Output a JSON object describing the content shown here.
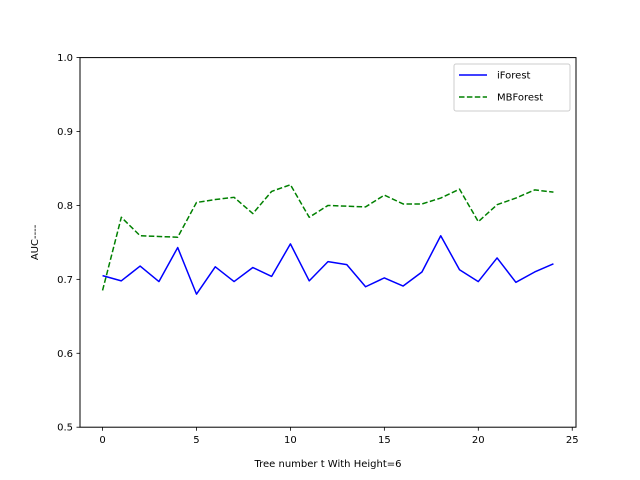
{
  "chart_data": {
    "type": "line",
    "xlabel": "Tree number t With Height=6",
    "ylabel": "AUC----",
    "xlim": [
      -1.2,
      25.2
    ],
    "ylim": [
      0.5,
      1.0
    ],
    "xticks": [
      0,
      5,
      10,
      15,
      20,
      25
    ],
    "yticks": [
      0.5,
      0.6,
      0.7,
      0.8,
      0.9,
      1.0
    ],
    "ytick_labels": [
      "0.5",
      "0.6",
      "0.7",
      "0.8",
      "0.9",
      "1.0"
    ],
    "grid": false,
    "legend_position": "top-right",
    "x": [
      0,
      1,
      2,
      3,
      4,
      5,
      6,
      7,
      8,
      9,
      10,
      11,
      12,
      13,
      14,
      15,
      16,
      17,
      18,
      19,
      20,
      21,
      22,
      23,
      24
    ],
    "series": [
      {
        "name": "iForest",
        "color": "#0000ff",
        "dash": "solid",
        "values": [
          0.705,
          0.698,
          0.718,
          0.697,
          0.743,
          0.68,
          0.717,
          0.697,
          0.716,
          0.704,
          0.748,
          0.698,
          0.724,
          0.72,
          0.69,
          0.702,
          0.691,
          0.71,
          0.759,
          0.713,
          0.697,
          0.729,
          0.696,
          0.71,
          0.721
        ]
      },
      {
        "name": "MBForest",
        "color": "#008000",
        "dash": "dashed",
        "values": [
          0.685,
          0.784,
          0.759,
          0.758,
          0.757,
          0.804,
          0.808,
          0.811,
          0.789,
          0.819,
          0.828,
          0.784,
          0.8,
          0.799,
          0.798,
          0.814,
          0.802,
          0.802,
          0.81,
          0.822,
          0.778,
          0.801,
          0.81,
          0.821,
          0.818
        ]
      }
    ]
  }
}
